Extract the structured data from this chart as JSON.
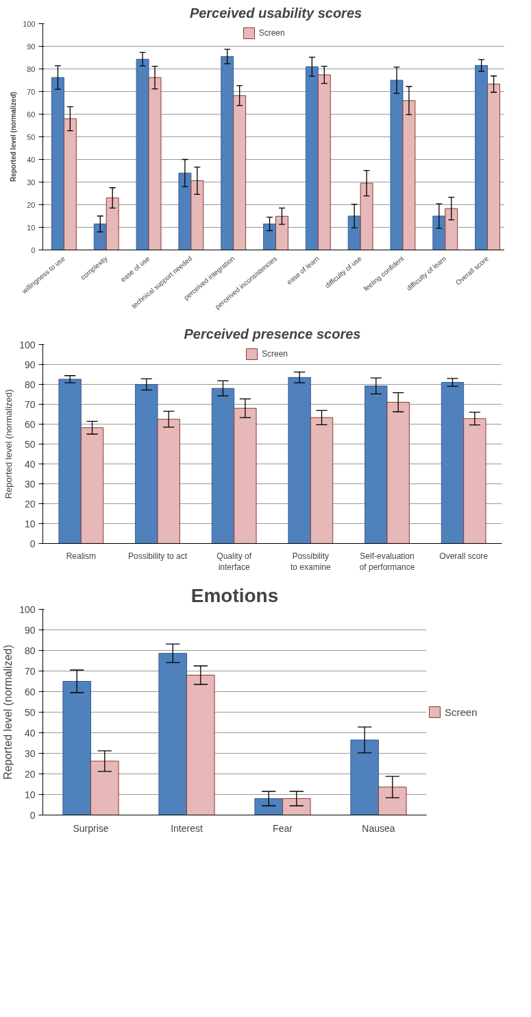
{
  "chart_data": [
    {
      "type": "bar",
      "title": "Perceived usability scores",
      "ylabel": "Reported level (normalized)",
      "categories": [
        "willingness to use",
        "complexity",
        "ease of use",
        "technical support needed",
        "perceived integration",
        "perceived inconsistencies",
        "ease of learn",
        "difficulty of use",
        "feeling confident",
        "difficulty of learn",
        "Overall score"
      ],
      "ylim": [
        0,
        100
      ],
      "yticks": [
        0,
        10,
        20,
        30,
        40,
        50,
        60,
        70,
        80,
        90,
        100
      ],
      "grid": "y",
      "legend": "top",
      "series": [
        {
          "color": "#4f81bd",
          "values": [
            76.2,
            11.5,
            84.3,
            34,
            85.5,
            11.5,
            81,
            15,
            75,
            15,
            81.5
          ],
          "errors": [
            5.2,
            3.5,
            3,
            6,
            3.2,
            3,
            4.2,
            5.2,
            5.8,
            5.4,
            2.6
          ]
        },
        {
          "name": "Screen",
          "color": "#e6b8b7",
          "values": [
            58,
            23,
            76.2,
            30.6,
            68.2,
            14.9,
            77.4,
            29.5,
            66,
            18.3,
            73.3
          ],
          "errors": [
            5.3,
            4.5,
            5,
            6,
            4.4,
            3.6,
            3.8,
            5.6,
            6.2,
            5,
            3.6
          ]
        }
      ]
    },
    {
      "type": "bar",
      "title": "Perceived presence scores",
      "ylabel": "Reported level (normalized)",
      "categories": [
        "Realism",
        "Possibility to act",
        "Quality of interface",
        "Possibility to examine",
        "Self-evaluation of performance",
        "Overall score"
      ],
      "ylim": [
        0,
        100
      ],
      "yticks": [
        0,
        10,
        20,
        30,
        40,
        50,
        60,
        70,
        80,
        90,
        100
      ],
      "grid": "y",
      "legend": "top",
      "series": [
        {
          "color": "#4f81bd",
          "values": [
            82.6,
            80,
            78,
            83.5,
            79.2,
            81
          ],
          "errors": [
            1.8,
            2.8,
            3.8,
            2.7,
            4,
            2
          ]
        },
        {
          "name": "Screen",
          "color": "#e6b8b7",
          "values": [
            58.2,
            62.5,
            68,
            63.3,
            71,
            62.8
          ],
          "errors": [
            3.2,
            4,
            4.7,
            3.6,
            4.8,
            3.2
          ]
        }
      ]
    },
    {
      "type": "bar",
      "title": "Emotions",
      "ylabel": "Reported level (normalized)",
      "categories": [
        "Surprise",
        "Interest",
        "Fear",
        "Nausea"
      ],
      "ylim": [
        0,
        100
      ],
      "yticks": [
        0,
        10,
        20,
        30,
        40,
        50,
        60,
        70,
        80,
        90,
        100
      ],
      "grid": "y",
      "legend": "right",
      "series": [
        {
          "color": "#4f81bd",
          "values": [
            65,
            78.6,
            8,
            36.5
          ],
          "errors": [
            5.5,
            4.5,
            3.5,
            6.3
          ]
        },
        {
          "name": "Screen",
          "color": "#e6b8b7",
          "values": [
            26.2,
            68,
            8,
            13.6
          ],
          "errors": [
            5,
            4.5,
            3.5,
            5.2
          ]
        }
      ]
    }
  ]
}
